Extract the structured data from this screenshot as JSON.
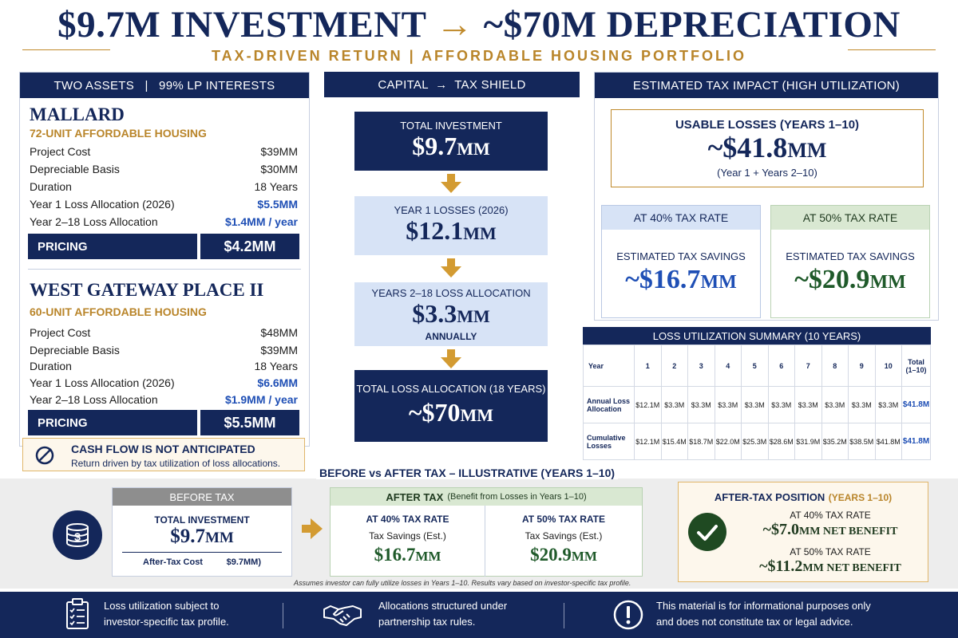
{
  "header": {
    "title_left": "$9.7M INVESTMENT",
    "title_arrow": "→",
    "title_right": "~$70M DEPRECIATION",
    "subtitle": "TAX-DRIVEN RETURN  |  AFFORDABLE HOUSING PORTFOLIO"
  },
  "assets_panel": {
    "heading": "TWO ASSETS   |   99% LP INTERESTS",
    "assets": [
      {
        "name": "MALLARD",
        "subtitle": "72-UNIT AFFORDABLE HOUSING",
        "rows": [
          {
            "label": "Project Cost",
            "value": "$39MM"
          },
          {
            "label": "Depreciable Basis",
            "value": "$30MM"
          },
          {
            "label": "Duration",
            "value": "18 Years"
          },
          {
            "label": "Year 1 Loss Allocation (2026)",
            "value": "$5.5MM"
          },
          {
            "label": "Year 2–18 Loss Allocation",
            "value": "$1.4MM / year"
          }
        ],
        "pricing_label": "PRICING",
        "pricing_value": "$4.2MM"
      },
      {
        "name": "WEST GATEWAY PLACE II",
        "subtitle": "60-UNIT AFFORDABLE HOUSING",
        "rows": [
          {
            "label": "Project Cost",
            "value": "$48MM"
          },
          {
            "label": "Depreciable Basis",
            "value": "$39MM"
          },
          {
            "label": "Duration",
            "value": "18 Years"
          },
          {
            "label": "Year 1 Loss Allocation (2026)",
            "value": "$6.6MM"
          },
          {
            "label": "Year 2–18 Loss Allocation",
            "value": "$1.9MM / year"
          }
        ],
        "pricing_label": "PRICING",
        "pricing_value": "$5.5MM"
      }
    ],
    "cashflow_title": "CASH FLOW IS NOT ANTICIPATED",
    "cashflow_text": "Return driven by tax utilization of loss allocations."
  },
  "flow_panel": {
    "heading": "CAPITAL  →  TAX SHIELD",
    "steps": [
      {
        "label": "TOTAL INVESTMENT",
        "amount": "$9.7",
        "unit": "MM",
        "note": ""
      },
      {
        "label": "YEAR 1 LOSSES (2026)",
        "amount": "$12.1",
        "unit": "MM",
        "note": ""
      },
      {
        "label": "YEARS 2–18 LOSS ALLOCATION",
        "amount": "$3.3",
        "unit": "MM",
        "note": "ANNUALLY"
      },
      {
        "label": "TOTAL LOSS ALLOCATION (18 YEARS)",
        "amount": "~$70",
        "unit": "MM",
        "note": ""
      }
    ]
  },
  "impact_panel": {
    "heading": "ESTIMATED TAX IMPACT (HIGH UTILIZATION)",
    "usable_label": "USABLE LOSSES (YEARS 1–10)",
    "usable_amount": "~$41.8",
    "usable_unit": "MM",
    "usable_note": "(Year 1 + Years 2–10)",
    "rates": [
      {
        "label": "AT 40% TAX RATE",
        "savings_label": "ESTIMATED TAX SAVINGS",
        "amount": "~$16.7",
        "unit": "MM"
      },
      {
        "label": "AT 50% TAX RATE",
        "savings_label": "ESTIMATED TAX SAVINGS",
        "amount": "~$20.9",
        "unit": "MM"
      }
    ]
  },
  "summary_table": {
    "heading": "LOSS UTILIZATION SUMMARY (10 YEARS)",
    "year_label": "Year",
    "years": [
      "1",
      "2",
      "3",
      "4",
      "5",
      "6",
      "7",
      "8",
      "9",
      "10"
    ],
    "total_label": "Total (1–10)",
    "rows": [
      {
        "label": "Annual Loss Allocation",
        "values": [
          "$12.1M",
          "$3.3M",
          "$3.3M",
          "$3.3M",
          "$3.3M",
          "$3.3M",
          "$3.3M",
          "$3.3M",
          "$3.3M",
          "$3.3M"
        ],
        "total": "$41.8M"
      },
      {
        "label": "Cumulative Losses",
        "values": [
          "$12.1M",
          "$15.4M",
          "$18.7M",
          "$22.0M",
          "$25.3M",
          "$28.6M",
          "$31.9M",
          "$35.2M",
          "$38.5M",
          "$41.8M"
        ],
        "total": "$41.8M"
      }
    ]
  },
  "comparison": {
    "heading": "BEFORE vs AFTER TAX – ILLUSTRATIVE (YEARS 1–10)",
    "before": {
      "label": "BEFORE TAX",
      "investment_label": "TOTAL INVESTMENT",
      "investment_amount": "$9.7",
      "investment_unit": "MM",
      "cost_label": "After-Tax Cost",
      "cost_value": "$9.7MM)"
    },
    "after": {
      "label": "AFTER TAX",
      "label_note": "(Benefit from Losses in Years 1–10)",
      "cols": [
        {
          "rate": "AT 40% TAX RATE",
          "savings_label": "Tax Savings (Est.)",
          "amount": "$16.7",
          "unit": "MM"
        },
        {
          "rate": "AT 50% TAX RATE",
          "savings_label": "Tax Savings (Est.)",
          "amount": "$20.9",
          "unit": "MM"
        }
      ]
    },
    "position": {
      "title": "AFTER-TAX POSITION",
      "title_note": "(YEARS 1–10)",
      "items": [
        {
          "rate": "AT 40% TAX RATE",
          "amount": "~$7.0",
          "unit": "MM NET BENEFIT"
        },
        {
          "rate": "AT 50% TAX RATE",
          "amount": "~$11.2",
          "unit": "MM NET BENEFIT"
        }
      ]
    },
    "footnote": "Assumes investor can fully utilize losses in Years 1–10. Results vary based on investor-specific tax profile."
  },
  "footer": {
    "items": [
      {
        "line1": "Loss utilization subject to",
        "line2": "investor-specific tax profile."
      },
      {
        "line1": "Allocations structured under",
        "line2": "partnership tax rules."
      },
      {
        "line1": "This material is for informational purposes only",
        "line2": "and does not constitute tax or legal advice."
      }
    ]
  },
  "colors": {
    "navy": "#14275a",
    "gold": "#b9852a",
    "blue": "#1f4fb5",
    "green": "#1f5a2a",
    "light_blue": "#d7e3f6"
  }
}
